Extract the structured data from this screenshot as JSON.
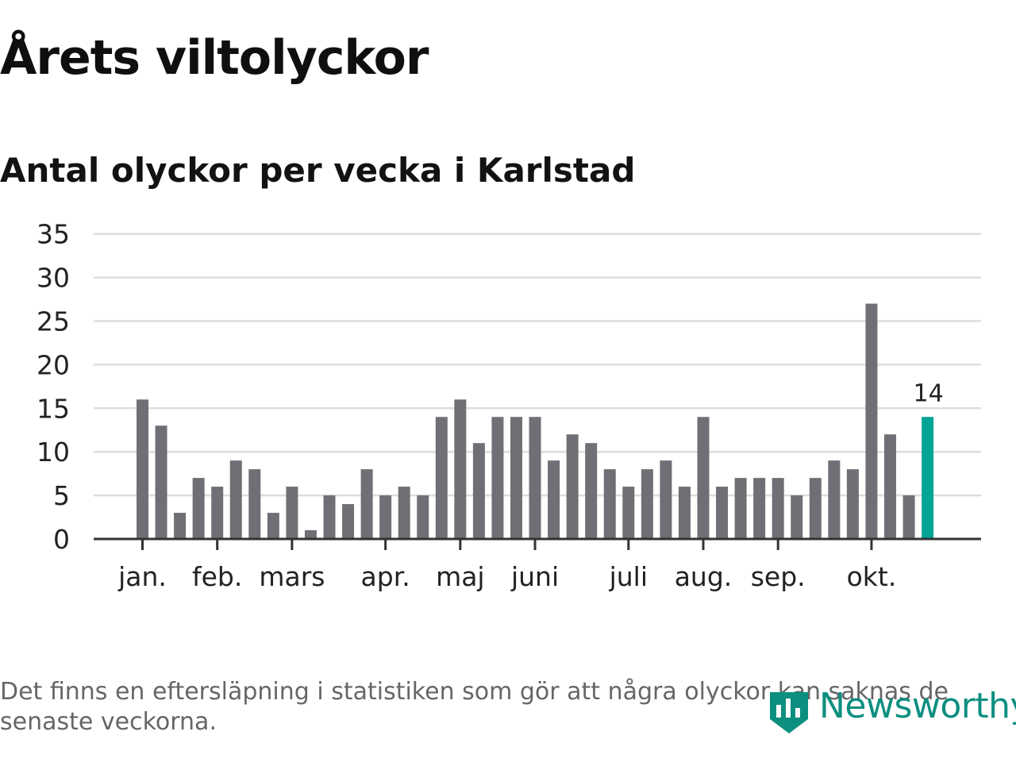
{
  "title": "Årets viltolyckor",
  "subtitle": "Antal olyckor per vecka i Karlstad",
  "footnote": "Det finns en eftersläpning i statistiken som gör att några olyckor kan saknas de senaste veckorna.",
  "logo": {
    "text": "Newsworthy",
    "icon": "bar-chart-shield-icon"
  },
  "colors": {
    "bar": "#706f75",
    "highlight": "#00a595",
    "grid": "#dddddd",
    "axis": "#333333",
    "logo": "#0c8f7f"
  },
  "chart_data": {
    "type": "bar",
    "title": "Årets viltolyckor",
    "subtitle": "Antal olyckor per vecka i Karlstad",
    "xlabel": "",
    "ylabel": "",
    "ylim": [
      0,
      35
    ],
    "yticks": [
      0,
      5,
      10,
      15,
      20,
      25,
      30,
      35
    ],
    "grid": true,
    "values": [
      16,
      13,
      3,
      7,
      6,
      9,
      8,
      3,
      6,
      1,
      5,
      4,
      8,
      5,
      6,
      5,
      14,
      16,
      11,
      14,
      14,
      14,
      9,
      12,
      11,
      8,
      6,
      8,
      9,
      6,
      14,
      6,
      7,
      7,
      7,
      5,
      7,
      9,
      8,
      27,
      12,
      5,
      14
    ],
    "highlight_index": 42,
    "highlight_label": "14",
    "month_ticks": [
      {
        "label": "jan.",
        "week_index": 0
      },
      {
        "label": "feb.",
        "week_index": 4
      },
      {
        "label": "mars",
        "week_index": 8
      },
      {
        "label": "apr.",
        "week_index": 13
      },
      {
        "label": "maj",
        "week_index": 17
      },
      {
        "label": "juni",
        "week_index": 21
      },
      {
        "label": "juli",
        "week_index": 26
      },
      {
        "label": "aug.",
        "week_index": 30
      },
      {
        "label": "sep.",
        "week_index": 34
      },
      {
        "label": "okt.",
        "week_index": 39
      }
    ]
  }
}
